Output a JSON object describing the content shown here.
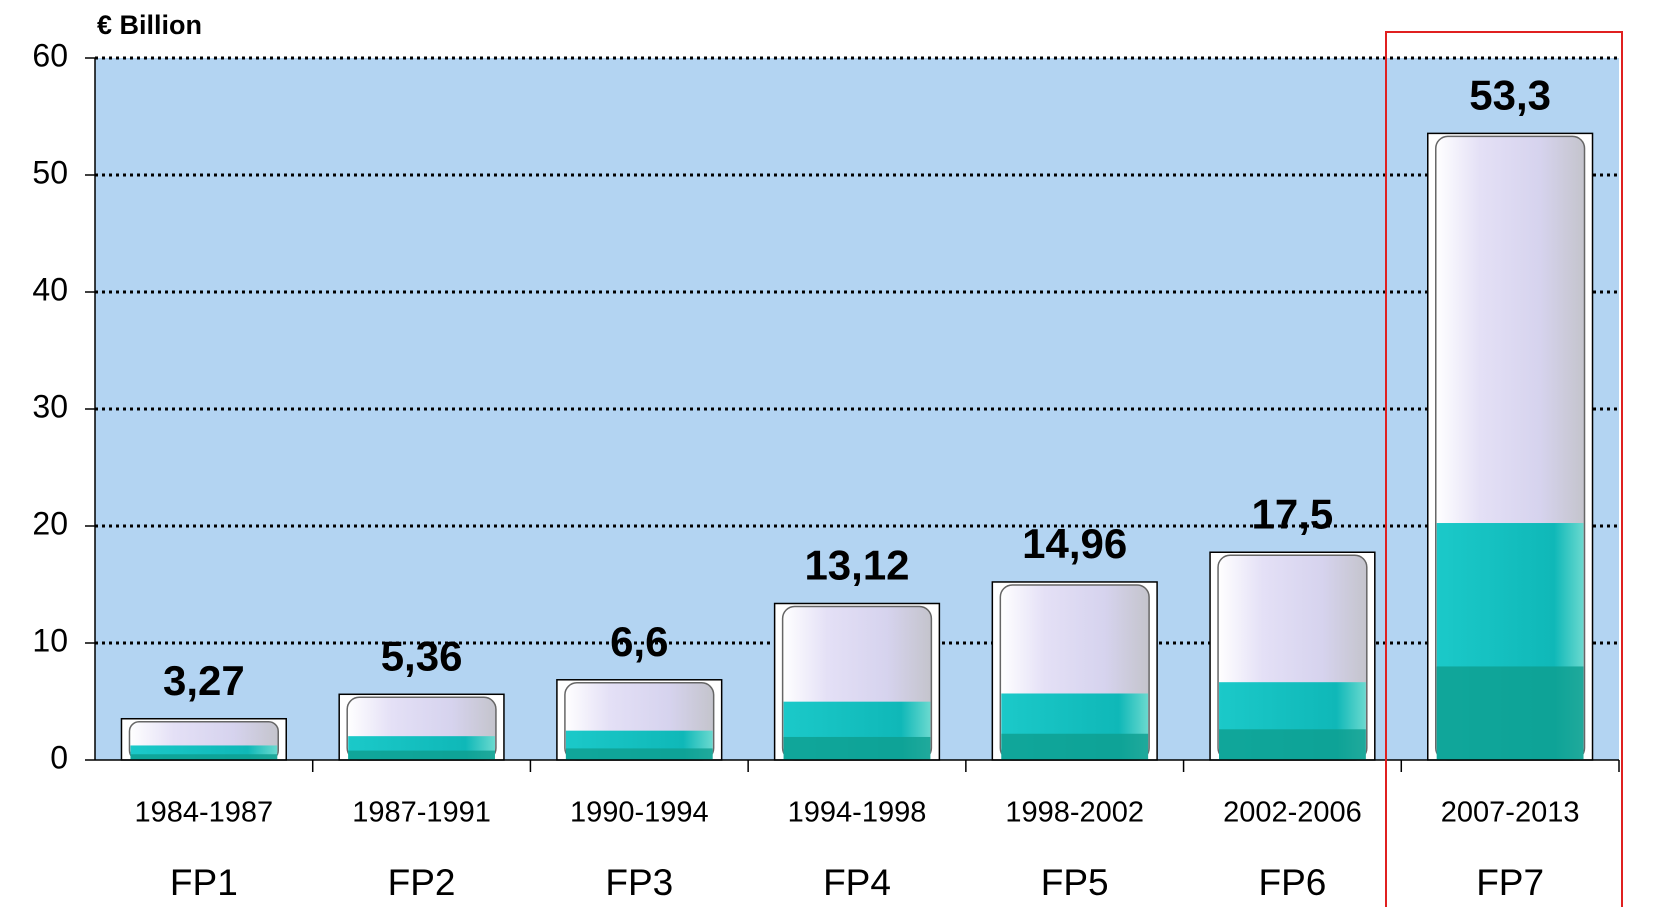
{
  "chart_data": {
    "type": "bar",
    "y_label": "€ Billion",
    "categories": [
      "1984-1987",
      "1987-1991",
      "1990-1994",
      "1994-1998",
      "1998-2002",
      "2002-2006",
      "2007-2013"
    ],
    "programmes": [
      "FP1",
      "FP2",
      "FP3",
      "FP4",
      "FP5",
      "FP6",
      "FP7"
    ],
    "values": [
      3.27,
      5.36,
      6.6,
      13.12,
      14.96,
      17.5,
      53.3
    ],
    "value_labels": [
      "3,27",
      "5,36",
      "6,6",
      "13,12",
      "14,96",
      "17,5",
      "53,3"
    ],
    "color": "#dcd8f4",
    "ylim": [
      0,
      60
    ],
    "yticks": [
      0,
      10,
      20,
      30,
      40,
      50,
      60
    ],
    "grid": true
  }
}
